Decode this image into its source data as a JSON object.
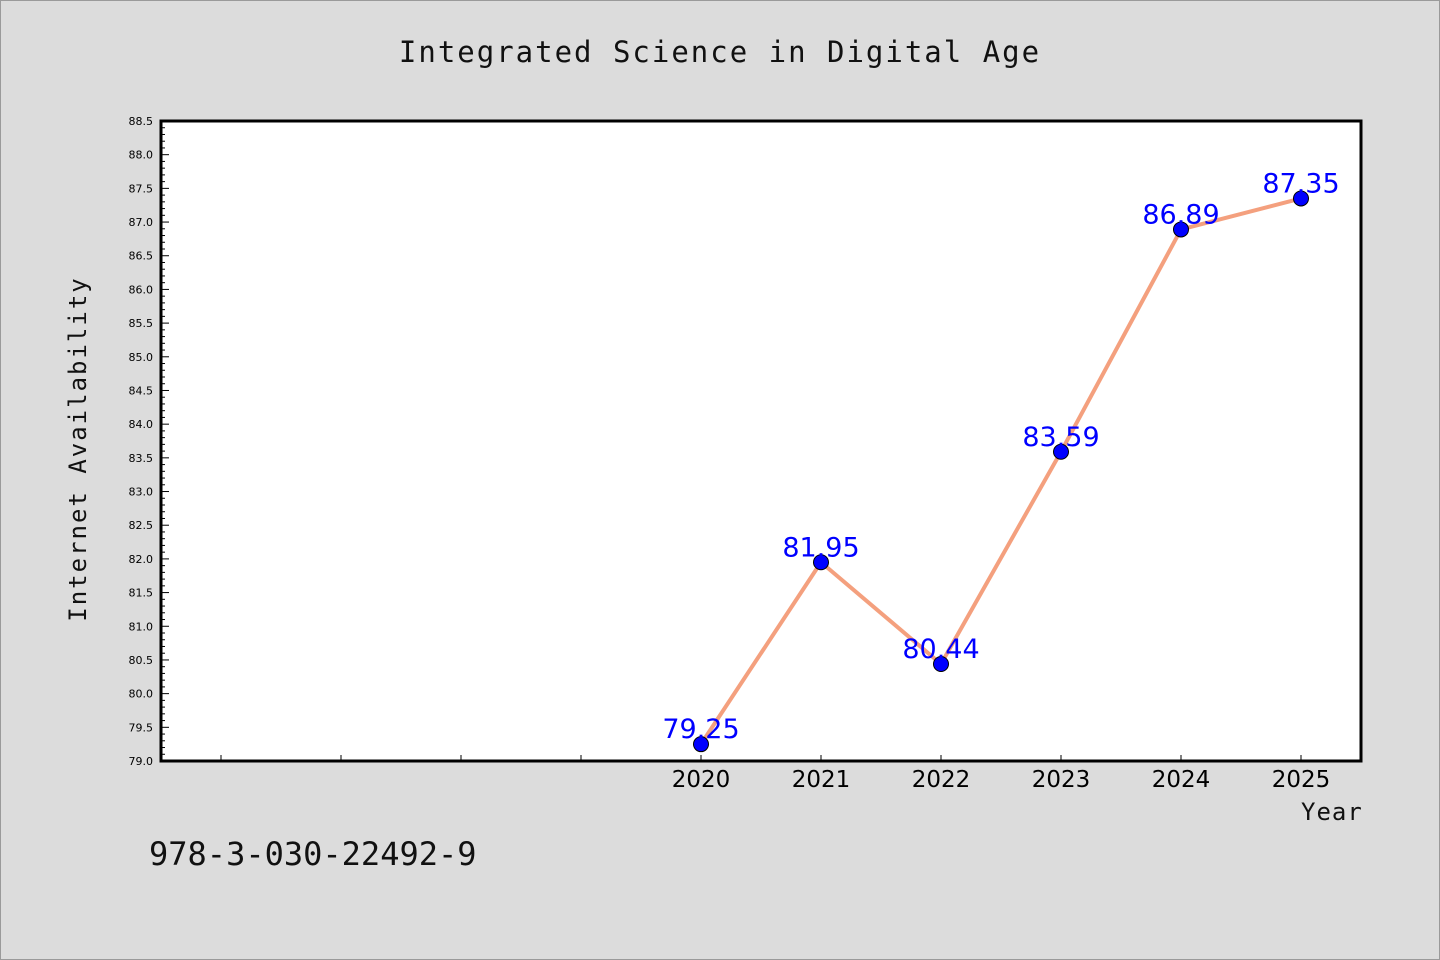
{
  "chart_data": {
    "type": "line",
    "title": "Integrated Science in Digital Age",
    "xlabel": "Year",
    "ylabel": "Internet Availability",
    "categories": [
      "2020",
      "2021",
      "2022",
      "2023",
      "2024",
      "2025"
    ],
    "x": [
      2020,
      2021,
      2022,
      2023,
      2024,
      2025
    ],
    "xlim": [
      2015.5,
      2025.5
    ],
    "series": [
      {
        "values": [
          79.25,
          81.95,
          80.44,
          83.59,
          86.89,
          87.35
        ]
      }
    ],
    "data_labels": [
      "79.25",
      "81.95",
      "80.44",
      "83.59",
      "86.89",
      "87.35"
    ],
    "ylim": [
      79.0,
      88.5
    ],
    "yticks": [
      "79.0",
      "79.5",
      "80.0",
      "80.5",
      "81.0",
      "81.5",
      "82.0",
      "82.5",
      "83.0",
      "83.5",
      "84.0",
      "84.5",
      "85.0",
      "85.5",
      "86.0",
      "86.5",
      "87.0",
      "87.5",
      "88.0",
      "88.5"
    ],
    "grid": false,
    "line_color": "#f4a07e",
    "marker_color": "#0000ff",
    "label_color": "#0000ff",
    "plot_background": "#ffffff",
    "figure_background": "#dcdcdc"
  },
  "footer": {
    "code": "978-3-030-22492-9"
  }
}
